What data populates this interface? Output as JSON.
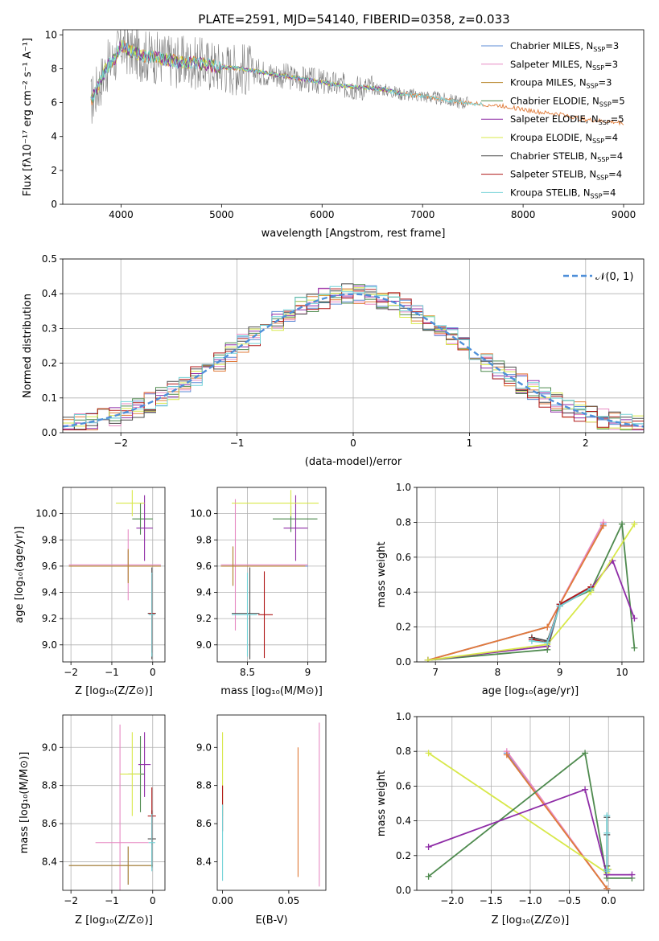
{
  "figure_title": "PLATE=2591, MJD=54140, FIBERID=0358, z=0.033",
  "colors": {
    "Chabrier MILES": "#5b8bd6",
    "Salpeter MILES": "#e78ac3",
    "Kroupa MILES": "#b8862b",
    "Chabrier ELODIE": "#4e8a4e",
    "Salpeter ELODIE": "#8e2ca6",
    "Kroupa ELODIE": "#d8e84a",
    "Chabrier STELIB": "#4a4a4a",
    "Salpeter STELIB": "#b01818",
    "Kroupa STELIB": "#74d3d8",
    "observed": "#808080",
    "normal": "#4f8fd9",
    "orange": "#e07b39"
  },
  "chart_data": [
    {
      "id": "spectrum",
      "type": "line",
      "title": "PLATE=2591, MJD=54140, FIBERID=0358, z=0.033",
      "xlabel": "wavelength [Angstrom, rest frame]",
      "ylabel": "Flux [fλ10⁻¹⁷ erg cm⁻² s⁻¹ A⁻¹]",
      "xlim": [
        3420,
        9200
      ],
      "ylim": [
        0,
        10.3
      ],
      "xticks": [
        4000,
        5000,
        6000,
        7000,
        8000,
        9000
      ],
      "yticks": [
        0,
        2,
        4,
        6,
        8,
        10
      ],
      "grid": false,
      "legend_position": "top-right",
      "legend": [
        {
          "name": "Chabrier MILES",
          "sub": "SSP",
          "n": "=3"
        },
        {
          "name": "Salpeter MILES",
          "sub": "SSP",
          "n": "=3"
        },
        {
          "name": "Kroupa MILES",
          "sub": "SSP",
          "n": "=3"
        },
        {
          "name": "Chabrier ELODIE",
          "sub": "SSP",
          "n": "=5"
        },
        {
          "name": "Salpeter ELODIE",
          "sub": "SSP",
          "n": "=5"
        },
        {
          "name": "Kroupa ELODIE",
          "sub": "SSP",
          "n": "=4"
        },
        {
          "name": "Chabrier STELIB",
          "sub": "SSP",
          "n": "=4"
        },
        {
          "name": "Salpeter STELIB",
          "sub": "SSP",
          "n": "=4"
        },
        {
          "name": "Kroupa STELIB",
          "sub": "SSP",
          "n": "=4"
        }
      ],
      "continuum": [
        [
          3700,
          6.0
        ],
        [
          3760,
          6.8
        ],
        [
          3850,
          8.0
        ],
        [
          3950,
          8.7
        ],
        [
          4000,
          9.4
        ],
        [
          4100,
          9.0
        ],
        [
          4200,
          8.8
        ],
        [
          4400,
          8.6
        ],
        [
          4600,
          8.4
        ],
        [
          4800,
          8.3
        ],
        [
          5000,
          8.1
        ],
        [
          5200,
          8.0
        ],
        [
          5400,
          7.8
        ],
        [
          5600,
          7.6
        ],
        [
          5800,
          7.4
        ],
        [
          6000,
          7.2
        ],
        [
          6200,
          7.0
        ],
        [
          6400,
          6.9
        ],
        [
          6600,
          6.8
        ],
        [
          6800,
          6.5
        ],
        [
          7000,
          6.4
        ],
        [
          7200,
          6.2
        ],
        [
          7400,
          6.0
        ],
        [
          7600,
          5.9
        ],
        [
          7800,
          5.8
        ],
        [
          8000,
          5.6
        ],
        [
          8200,
          5.4
        ],
        [
          8400,
          5.3
        ],
        [
          8600,
          5.0
        ],
        [
          8800,
          4.9
        ],
        [
          9000,
          4.8
        ]
      ]
    },
    {
      "id": "residuals",
      "type": "histogram",
      "xlabel": "(data-model)/error",
      "ylabel": "Normed distribution",
      "xlim": [
        -2.5,
        2.5
      ],
      "ylim": [
        0,
        0.5
      ],
      "xticks": [
        -2,
        -1,
        0,
        1,
        2
      ],
      "yticks": [
        0.0,
        0.1,
        0.2,
        0.3,
        0.4,
        0.5
      ],
      "grid": true,
      "legend_position": "top-right",
      "legend_label": "𝒩(0, 1)",
      "bin_width": 0.1
    },
    {
      "id": "age-vs-Z",
      "type": "scatter",
      "xlabel": "Z [log₁₀(Z/Z⊙)]",
      "ylabel": "age  [log₁₀(age/yr)]",
      "xlim": [
        -2.2,
        0.3
      ],
      "ylim": [
        8.87,
        10.2
      ],
      "xticks": [
        -2,
        -1,
        0
      ],
      "yticks": [
        9.0,
        9.2,
        9.4,
        9.6,
        9.8,
        10.0
      ],
      "grid": true,
      "series": [
        {
          "color": "Chabrier MILES",
          "x": -0.6,
          "y": 9.6,
          "xerr": [
            1.45,
            0.8
          ],
          "yerr": 0.12
        },
        {
          "color": "Salpeter MILES",
          "x": -0.6,
          "y": 9.61,
          "xerr": [
            1.45,
            0.8
          ],
          "yerr": 0.27
        },
        {
          "color": "Kroupa MILES",
          "x": -0.6,
          "y": 9.6,
          "xerr": [
            1.45,
            0.8
          ],
          "yerr": 0.13
        },
        {
          "color": "Chabrier ELODIE",
          "x": -0.3,
          "y": 9.96,
          "xerr": [
            0.2,
            0.3
          ],
          "yerr": 0.12
        },
        {
          "color": "Salpeter ELODIE",
          "x": -0.2,
          "y": 9.89,
          "xerr": [
            0.2,
            0.2
          ],
          "yerr": 0.25
        },
        {
          "color": "Kroupa ELODIE",
          "x": -0.5,
          "y": 10.08,
          "xerr": [
            0.4,
            0.3
          ],
          "yerr": 0.1
        },
        {
          "color": "Chabrier STELIB",
          "x": -0.02,
          "y": 9.24,
          "xerr": [
            0.1,
            0.1
          ],
          "yerr": 0.35
        },
        {
          "color": "Salpeter STELIB",
          "x": -0.02,
          "y": 9.24,
          "xerr": [
            0.08,
            0.08
          ],
          "yerr": 0.3
        },
        {
          "color": "Kroupa STELIB",
          "x": -0.02,
          "y": 9.23,
          "xerr": [
            0.08,
            0.08
          ],
          "yerr": 0.32
        }
      ]
    },
    {
      "id": "age-vs-mass",
      "type": "scatter",
      "xlabel": "mass [log₁₀(M/M⊙)]",
      "xlim": [
        8.25,
        9.15
      ],
      "ylim": [
        8.87,
        10.2
      ],
      "xticks": [
        8.5,
        9.0
      ],
      "yticks": [
        9.0,
        9.2,
        9.4,
        9.6,
        9.8,
        10.0
      ],
      "grid": true,
      "series": [
        {
          "color": "Chabrier MILES",
          "x": 8.38,
          "y": 9.6,
          "xerr": [
            0.1,
            0.62
          ],
          "yerr": 0.15
        },
        {
          "color": "Salpeter MILES",
          "x": 8.4,
          "y": 9.61,
          "xerr": [
            0.12,
            0.6
          ],
          "yerr": 0.5
        },
        {
          "color": "Kroupa MILES",
          "x": 8.38,
          "y": 9.6,
          "xerr": [
            0.1,
            0.6
          ],
          "yerr": 0.15
        },
        {
          "color": "Chabrier ELODIE",
          "x": 8.86,
          "y": 9.96,
          "xerr": [
            0.15,
            0.22
          ],
          "yerr": 0.1
        },
        {
          "color": "Salpeter ELODIE",
          "x": 8.9,
          "y": 9.89,
          "xerr": [
            0.1,
            0.1
          ],
          "yerr": 0.25
        },
        {
          "color": "Kroupa ELODIE",
          "x": 8.86,
          "y": 10.08,
          "xerr": [
            0.49,
            0.23
          ],
          "yerr": 0.1
        },
        {
          "color": "Chabrier STELIB",
          "x": 8.52,
          "y": 9.24,
          "xerr": [
            0.15,
            0.08
          ],
          "yerr": 0.35
        },
        {
          "color": "Salpeter STELIB",
          "x": 8.64,
          "y": 9.23,
          "xerr": [
            0.05,
            0.07
          ],
          "yerr": 0.33
        },
        {
          "color": "Kroupa STELIB",
          "x": 8.5,
          "y": 9.23,
          "xerr": [
            0.13,
            0.08
          ],
          "yerr": 0.32
        }
      ]
    },
    {
      "id": "weight-vs-age",
      "type": "line",
      "xlabel": "age  [log₁₀(age/yr)]",
      "ylabel": "mass weight",
      "xlim": [
        6.7,
        10.35
      ],
      "ylim": [
        0,
        1.0
      ],
      "xticks": [
        7,
        8,
        9,
        10
      ],
      "yticks": [
        0.0,
        0.2,
        0.4,
        0.6,
        0.8,
        1.0
      ],
      "grid": true,
      "series": [
        {
          "color": "Chabrier MILES",
          "x": [
            6.88,
            8.8,
            9.7
          ],
          "y": [
            0.01,
            0.2,
            0.79
          ]
        },
        {
          "color": "Salpeter MILES",
          "x": [
            6.88,
            8.8,
            9.7
          ],
          "y": [
            0.01,
            0.2,
            0.8
          ]
        },
        {
          "color": "orange",
          "x": [
            6.88,
            8.8,
            9.7
          ],
          "y": [
            0.01,
            0.2,
            0.78
          ]
        },
        {
          "color": "Chabrier ELODIE",
          "x": [
            6.88,
            8.8,
            9.0,
            9.5,
            10.0,
            10.2
          ],
          "y": [
            0.01,
            0.07,
            0.33,
            0.41,
            0.79,
            0.08
          ]
        },
        {
          "color": "Salpeter ELODIE",
          "x": [
            6.88,
            8.8,
            9.0,
            9.5,
            9.85,
            10.2
          ],
          "y": [
            0.01,
            0.09,
            0.33,
            0.42,
            0.58,
            0.25
          ]
        },
        {
          "color": "Kroupa ELODIE",
          "x": [
            6.88,
            8.8,
            9.5,
            10.2
          ],
          "y": [
            0.01,
            0.1,
            0.4,
            0.79
          ]
        },
        {
          "color": "Chabrier STELIB",
          "x": [
            8.55,
            8.8,
            9.0,
            9.5
          ],
          "y": [
            0.14,
            0.12,
            0.32,
            0.42
          ]
        },
        {
          "color": "Salpeter STELIB",
          "x": [
            8.55,
            8.8,
            9.0,
            9.5
          ],
          "y": [
            0.13,
            0.11,
            0.33,
            0.43
          ]
        },
        {
          "color": "Kroupa STELIB",
          "x": [
            8.55,
            8.8,
            9.0,
            9.5
          ],
          "y": [
            0.12,
            0.11,
            0.32,
            0.42
          ]
        }
      ]
    },
    {
      "id": "mass-vs-Z",
      "type": "scatter",
      "xlabel": "Z [log₁₀(Z/Z⊙)]",
      "ylabel": "mass [log₁₀(M/M⊙)]",
      "xlim": [
        -2.2,
        0.3
      ],
      "ylim": [
        8.25,
        9.17
      ],
      "xticks": [
        -2,
        -1,
        0
      ],
      "yticks": [
        8.4,
        8.6,
        8.8,
        9.0
      ],
      "grid": true,
      "series": [
        {
          "color": "Chabrier MILES",
          "x": -0.6,
          "y": 8.38,
          "xerr": [
            1.45,
            0.6
          ],
          "yerr": 0.1
        },
        {
          "color": "Salpeter MILES",
          "x": -0.8,
          "y": 8.5,
          "xerr": [
            0.6,
            0.7
          ],
          "yerr": 0.62
        },
        {
          "color": "Kroupa MILES",
          "x": -0.6,
          "y": 8.38,
          "xerr": [
            1.45,
            0.6
          ],
          "yerr": 0.1
        },
        {
          "color": "Chabrier ELODIE",
          "x": -0.3,
          "y": 8.86,
          "xerr": [
            0.3,
            0.1
          ],
          "yerr": 0.2
        },
        {
          "color": "Salpeter ELODIE",
          "x": -0.2,
          "y": 8.91,
          "xerr": [
            0.15,
            0.15
          ],
          "yerr": 0.17
        },
        {
          "color": "Kroupa ELODIE",
          "x": -0.5,
          "y": 8.86,
          "xerr": [
            0.3,
            0.2
          ],
          "yerr": 0.22
        },
        {
          "color": "Chabrier STELIB",
          "x": -0.02,
          "y": 8.52,
          "xerr": [
            0.1,
            0.1
          ],
          "yerr": 0.15
        },
        {
          "color": "Salpeter STELIB",
          "x": -0.02,
          "y": 8.64,
          "xerr": [
            0.1,
            0.1
          ],
          "yerr": 0.15
        },
        {
          "color": "Kroupa STELIB",
          "x": -0.02,
          "y": 8.5,
          "xerr": [
            0.08,
            0.08
          ],
          "yerr": 0.15
        }
      ]
    },
    {
      "id": "mass-vs-EBV",
      "type": "scatter",
      "xlabel": "E(B-V)",
      "xlim": [
        -0.004,
        0.078
      ],
      "ylim": [
        8.25,
        9.17
      ],
      "xticks": [
        0.0,
        0.05
      ],
      "yticks": [
        8.4,
        8.6,
        8.8,
        9.0
      ],
      "grid": false,
      "series": [
        {
          "color": "Kroupa ELODIE",
          "x": 0.0,
          "y": 8.86,
          "xerr": [
            0,
            0
          ],
          "yerr": 0.22
        },
        {
          "color": "Salpeter STELIB",
          "x": 0.0,
          "y": 8.68,
          "xerr": [
            0,
            0
          ],
          "yerr": 0.12
        },
        {
          "color": "Kroupa STELIB",
          "x": 0.0,
          "y": 8.5,
          "xerr": [
            0,
            0
          ],
          "yerr": 0.2
        },
        {
          "color": "orange",
          "x": 0.057,
          "y": 8.66,
          "xerr": [
            0,
            0
          ],
          "yerr": 0.34
        },
        {
          "color": "Salpeter MILES",
          "x": 0.073,
          "y": 8.7,
          "xerr": [
            0,
            0
          ],
          "yerr": 0.43
        }
      ]
    },
    {
      "id": "weight-vs-Z",
      "type": "line",
      "xlabel": "Z [log₁₀(Z/Z⊙)]",
      "ylabel": "mass weight",
      "xlim": [
        -2.45,
        0.45
      ],
      "ylim": [
        0,
        1.0
      ],
      "xticks": [
        -2.0,
        -1.5,
        -1.0,
        -0.5,
        0.0
      ],
      "yticks": [
        0.0,
        0.2,
        0.4,
        0.6,
        0.8,
        1.0
      ],
      "grid": true,
      "series": [
        {
          "color": "Chabrier MILES",
          "x": [
            -1.3,
            -0.02
          ],
          "y": [
            0.79,
            0.01
          ]
        },
        {
          "color": "Salpeter MILES",
          "x": [
            -1.3,
            -0.02
          ],
          "y": [
            0.8,
            0.01
          ]
        },
        {
          "color": "orange",
          "x": [
            -1.3,
            -0.02
          ],
          "y": [
            0.78,
            0.01
          ]
        },
        {
          "color": "Kroupa ELODIE",
          "x": [
            -2.3,
            -0.02,
            0.0
          ],
          "y": [
            0.79,
            0.1,
            0.12
          ]
        },
        {
          "color": "Chabrier ELODIE",
          "x": [
            -2.3,
            -0.3,
            -0.02,
            0.3
          ],
          "y": [
            0.08,
            0.79,
            0.07,
            0.07
          ]
        },
        {
          "color": "Salpeter ELODIE",
          "x": [
            -2.3,
            -0.3,
            -0.02,
            0.3
          ],
          "y": [
            0.25,
            0.58,
            0.09,
            0.09
          ]
        },
        {
          "color": "Chabrier STELIB",
          "x": [
            -0.02,
            -0.02,
            -0.02,
            -0.02
          ],
          "y": [
            0.42,
            0.32,
            0.14,
            0.12
          ]
        },
        {
          "color": "Kroupa STELIB",
          "x": [
            -0.02,
            -0.02,
            -0.02,
            -0.02
          ],
          "y": [
            0.43,
            0.33,
            0.12,
            0.11
          ]
        }
      ]
    }
  ]
}
